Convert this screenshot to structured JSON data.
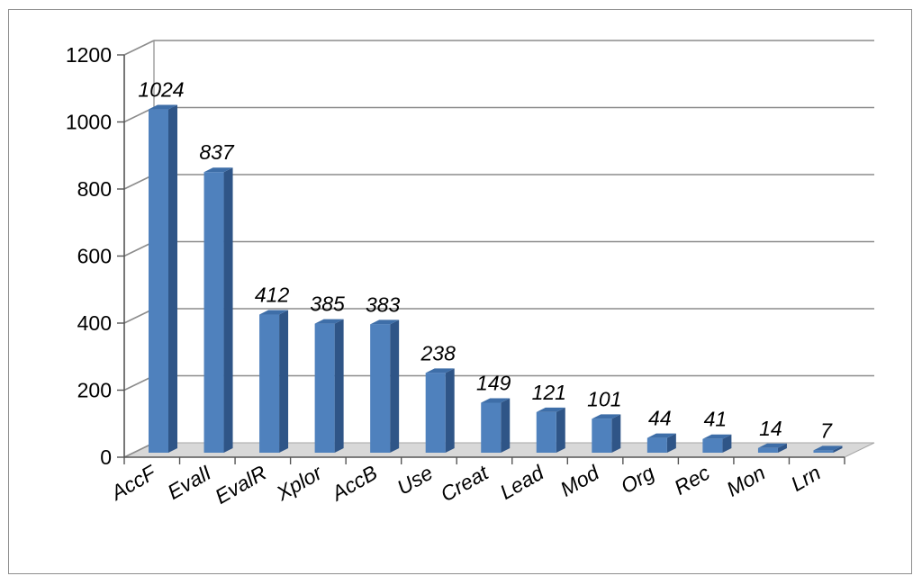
{
  "chart_data": {
    "type": "bar",
    "title": "",
    "xlabel": "",
    "ylabel": "",
    "categories": [
      "AccF",
      "EvalI",
      "EvalR",
      "Xplor",
      "AccB",
      "Use",
      "Creat",
      "Lead",
      "Mod",
      "Org",
      "Rec",
      "Mon",
      "Lrn"
    ],
    "values": [
      1024,
      837,
      412,
      385,
      383,
      238,
      149,
      121,
      101,
      44,
      41,
      14,
      7
    ],
    "data_labels": [
      "1024",
      "837",
      "412",
      "385",
      "383",
      "238",
      "149",
      "121",
      "101",
      "44",
      "41",
      "14",
      "7"
    ],
    "ylim": [
      0,
      1200
    ],
    "yticks": [
      "0",
      "200",
      "400",
      "600",
      "800",
      "1000",
      "1200"
    ],
    "grid": true,
    "legend": "none",
    "style": "3d-column",
    "colors": {
      "bar_front": "#4f81bd",
      "bar_side": "#2f5587",
      "bar_top": "#3e6ea8",
      "gridline": "#8c8c8c",
      "floor": "#d8d8d8",
      "frame": "#8e8e8e"
    }
  }
}
